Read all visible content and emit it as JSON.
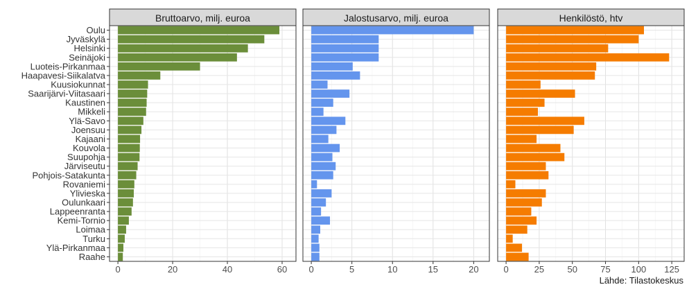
{
  "chart_data": {
    "type": "bar",
    "orientation": "horizontal",
    "categories": [
      "Oulu",
      "Jyväskylä",
      "Helsinki",
      "Seinäjoki",
      "Luoteis-Pirkanmaa",
      "Haapavesi-Siikalatva",
      "Kuusiokunnat",
      "Saarijärvi-Viitasaari",
      "Kaustinen",
      "Mikkeli",
      "Ylä-Savo",
      "Joensuu",
      "Kajaani",
      "Kouvola",
      "Suupohja",
      "Järviseutu",
      "Pohjois-Satakunta",
      "Rovaniemi",
      "Ylivieska",
      "Oulunkaari",
      "Lappeenranta",
      "Kemi-Tornio",
      "Loimaa",
      "Turku",
      "Ylä-Pirkanmaa",
      "Raahe"
    ],
    "panels": [
      {
        "title": "Bruttoarvo, milj. euroa",
        "color": "#6b8e3a",
        "xlim": [
          0,
          62
        ],
        "ticks": [
          0,
          20,
          40,
          60
        ],
        "values": [
          59.0,
          53.5,
          47.5,
          43.5,
          30.0,
          15.5,
          11.0,
          10.7,
          10.5,
          10.3,
          9.3,
          8.6,
          8.1,
          8.0,
          7.9,
          7.2,
          6.7,
          6.0,
          5.8,
          5.5,
          5.0,
          4.0,
          3.0,
          2.5,
          2.0,
          1.8
        ]
      },
      {
        "title": "Jalostusarvo, milj. euroa",
        "color": "#6495ed",
        "xlim": [
          0,
          20.9
        ],
        "ticks": [
          0,
          5,
          10,
          15,
          20
        ],
        "values": [
          20.0,
          8.3,
          8.3,
          8.3,
          5.1,
          6.0,
          2.0,
          4.7,
          2.7,
          1.5,
          4.2,
          3.1,
          2.1,
          3.5,
          2.6,
          3.0,
          2.7,
          0.7,
          2.5,
          1.8,
          1.2,
          2.3,
          1.1,
          0.9,
          1.0,
          1.0
        ]
      },
      {
        "title": "Henkilöstö, htv",
        "color": "#f57c00",
        "xlim": [
          0,
          128
        ],
        "ticks": [
          0,
          25,
          50,
          75,
          100,
          125
        ],
        "values": [
          104,
          100,
          77,
          123,
          68,
          67,
          26,
          52,
          29,
          24,
          59,
          51,
          23,
          41,
          44,
          30,
          32,
          7,
          30,
          27,
          19,
          23,
          16,
          5,
          12,
          17
        ]
      }
    ],
    "grid": true,
    "legend": "none"
  },
  "source": "Lähde: Tilastokeskus"
}
